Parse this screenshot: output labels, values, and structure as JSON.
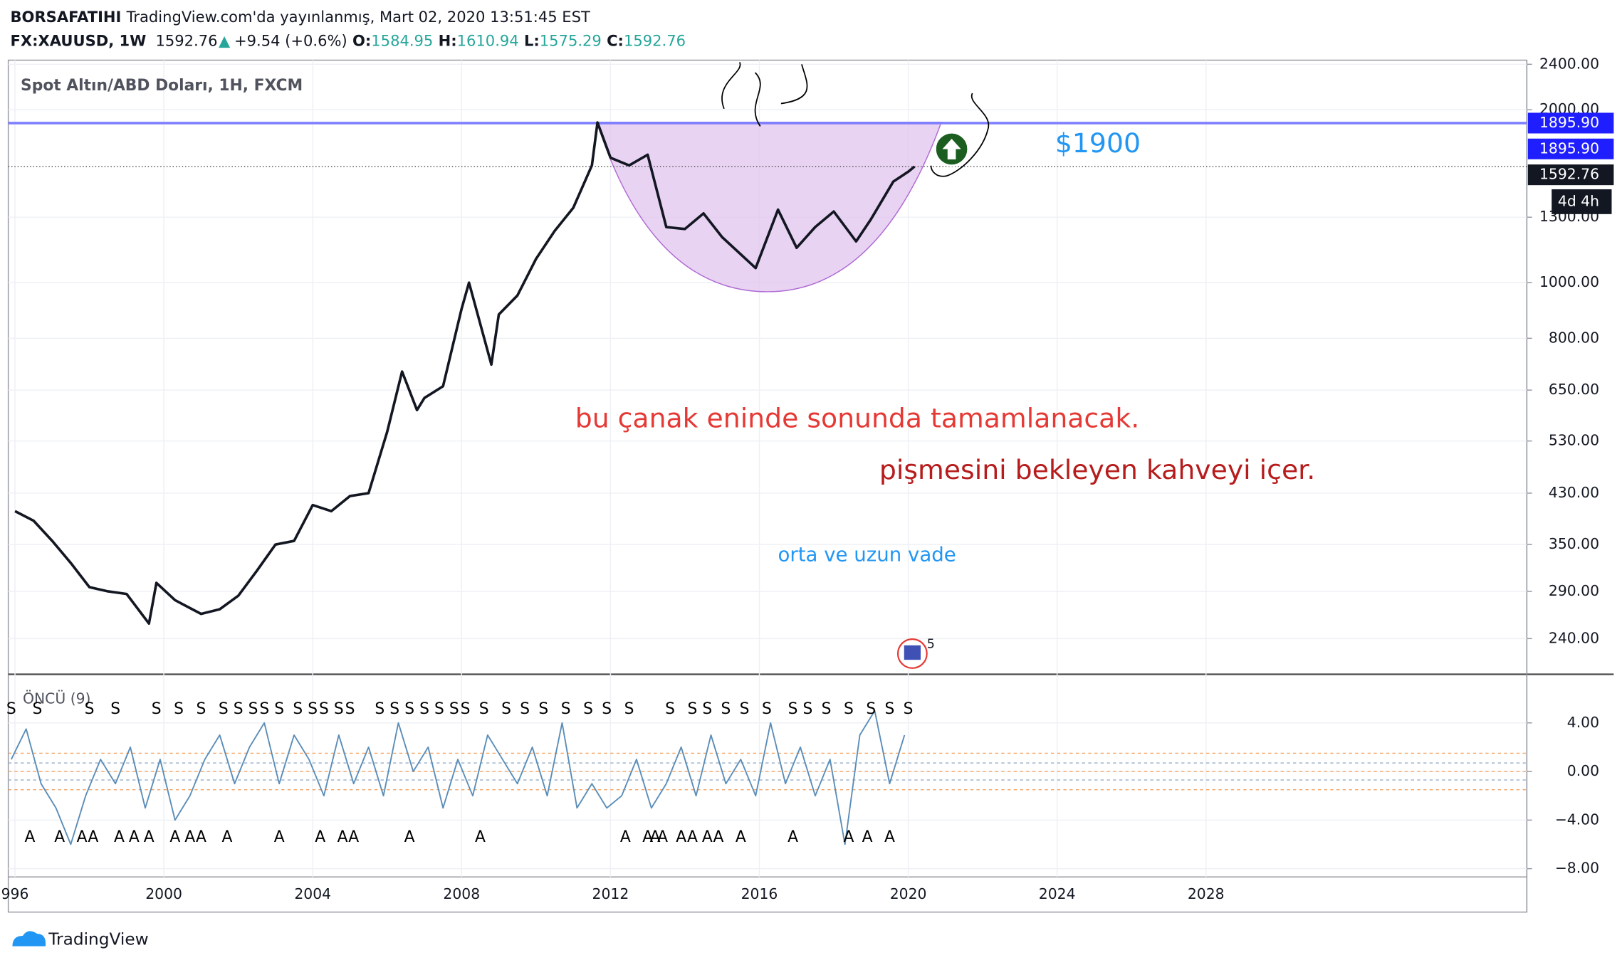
{
  "header": {
    "user": "BORSAFATIHI",
    "published": "TradingView.com'da yayınlanmış, Mart 02, 2020 13:51:45 EST",
    "symbol": "FX:XAUUSD, 1W",
    "last": "1592.76",
    "arrow": "▲",
    "change": "+9.54 (+0.6%)",
    "ohlc": [
      {
        "label": "O:",
        "value": "1584.95"
      },
      {
        "label": "H:",
        "value": "1610.94"
      },
      {
        "label": "L:",
        "value": "1575.29"
      },
      {
        "label": "C:",
        "value": "1592.76"
      }
    ]
  },
  "chart_data": [
    {
      "type": "line",
      "title": "Spot Altın/ABD Doları, 1H, FXCM",
      "log_scale": true,
      "grid": true,
      "color": "#131722",
      "x": [
        1996.0,
        1996.5,
        1997.0,
        1997.5,
        1998.0,
        1998.5,
        1999.0,
        1999.6,
        1999.8,
        2000.3,
        2001.0,
        2001.5,
        2002.0,
        2002.5,
        2003.0,
        2003.5,
        2004.0,
        2004.5,
        2005.0,
        2005.5,
        2006.0,
        2006.4,
        2006.8,
        2007.0,
        2007.5,
        2008.0,
        2008.2,
        2008.8,
        2009.0,
        2009.5,
        2010.0,
        2010.5,
        2011.0,
        2011.5,
        2011.65,
        2012.0,
        2012.5,
        2013.0,
        2013.5,
        2014.0,
        2014.5,
        2015.0,
        2015.9,
        2016.5,
        2017.0,
        2017.5,
        2018.0,
        2018.6,
        2019.0,
        2019.6,
        2020.0,
        2020.17
      ],
      "values": [
        400,
        385,
        355,
        325,
        295,
        290,
        287,
        255,
        300,
        280,
        265,
        270,
        285,
        315,
        350,
        355,
        410,
        400,
        425,
        430,
        550,
        700,
        600,
        630,
        660,
        900,
        1000,
        720,
        880,
        950,
        1100,
        1230,
        1350,
        1600,
        1900,
        1650,
        1600,
        1670,
        1250,
        1240,
        1320,
        1200,
        1060,
        1340,
        1150,
        1250,
        1330,
        1180,
        1290,
        1500,
        1560,
        1592.76
      ],
      "xlim": [
        1995.82,
        2036.62
      ],
      "xticks": [
        {
          "value": 1996,
          "label": "996"
        },
        2000,
        2004,
        2008,
        2012,
        2016,
        2020,
        2024,
        2028
      ],
      "ylim": [
        208,
        2440
      ],
      "yticks": [
        {
          "value": 2400,
          "label": "2400.00"
        },
        {
          "value": 2000,
          "label": "2000.00"
        },
        {
          "value": 1300,
          "label": "1300.00"
        },
        {
          "value": 1000,
          "label": "1000.00"
        },
        {
          "value": 800,
          "label": "800.00"
        },
        {
          "value": 650,
          "label": "650.00"
        },
        {
          "value": 530,
          "label": "530.00"
        },
        {
          "value": 430,
          "label": "430.00"
        },
        {
          "value": 350,
          "label": "350.00"
        },
        {
          "value": 290,
          "label": "290.00"
        },
        {
          "value": 240,
          "label": "240.00"
        }
      ],
      "hline": {
        "value": 1895.9,
        "label": "1895.90",
        "color": "#8080ff"
      },
      "target_label": {
        "value": 1895.9,
        "label": "1895.90"
      },
      "last_line": {
        "value": 1592.76,
        "label": "1592.76"
      },
      "countdown": "4d 4h",
      "annotations": [
        "$1900",
        "bu çanak eninde sonunda tamamlanacak.",
        "pişmesini bekleyen kahveyi içer.",
        "orta ve uzun vade"
      ],
      "badge": "5"
    },
    {
      "type": "line",
      "title": "ÖNCÜ (9)",
      "color": "#5b8db8",
      "x": [
        1995.9,
        1996.3,
        1996.7,
        1997.1,
        1997.5,
        1997.9,
        1998.3,
        1998.7,
        1999.1,
        1999.5,
        1999.9,
        2000.3,
        2000.7,
        2001.1,
        2001.5,
        2001.9,
        2002.3,
        2002.7,
        2003.1,
        2003.5,
        2003.9,
        2004.3,
        2004.7,
        2005.1,
        2005.5,
        2005.9,
        2006.3,
        2006.7,
        2007.1,
        2007.5,
        2007.9,
        2008.3,
        2008.7,
        2009.1,
        2009.5,
        2009.9,
        2010.3,
        2010.7,
        2011.1,
        2011.5,
        2011.9,
        2012.3,
        2012.7,
        2013.1,
        2013.5,
        2013.9,
        2014.3,
        2014.7,
        2015.1,
        2015.5,
        2015.9,
        2016.3,
        2016.7,
        2017.1,
        2017.5,
        2017.9,
        2018.3,
        2018.7,
        2019.1,
        2019.5,
        2019.9
      ],
      "values": [
        1,
        3.5,
        -1,
        -3,
        -6,
        -2,
        1,
        -1,
        2,
        -3,
        1,
        -4,
        -2,
        1,
        3,
        -1,
        2,
        4,
        -1,
        3,
        1,
        -2,
        3,
        -1,
        2,
        -2,
        4,
        0,
        2,
        -3,
        1,
        -2,
        3,
        1,
        -1,
        2,
        -2,
        4,
        -3,
        -1,
        -3,
        -2,
        1,
        -3,
        -1,
        2,
        -2,
        3,
        -1,
        1,
        -2,
        4,
        -1,
        2,
        -2,
        1,
        -6,
        3,
        5,
        -1,
        3
      ],
      "ylim": [
        -8.68,
        8.0
      ],
      "yticks": [
        {
          "value": 4,
          "label": "4.00"
        },
        {
          "value": 0,
          "label": "0.00"
        },
        {
          "value": -4,
          "label": "−4.00"
        },
        {
          "value": -8,
          "label": "−8.00"
        }
      ],
      "levels": [
        1.5,
        0.7,
        0,
        -0.7,
        -1.5
      ],
      "sell_label": "S",
      "sell_x": [
        1995.9,
        1996.6,
        1998.0,
        1998.7,
        1999.8,
        2000.4,
        2001.0,
        2001.6,
        2002.0,
        2002.4,
        2002.7,
        2003.1,
        2003.6,
        2004.0,
        2004.3,
        2004.7,
        2005.0,
        2005.8,
        2006.2,
        2006.6,
        2007.0,
        2007.4,
        2007.8,
        2008.1,
        2008.6,
        2009.2,
        2009.7,
        2010.2,
        2010.8,
        2011.4,
        2011.9,
        2012.5,
        2013.6,
        2014.2,
        2014.6,
        2015.1,
        2015.6,
        2016.2,
        2016.9,
        2017.3,
        2017.8,
        2018.4,
        2019.0,
        2019.5,
        2020.0
      ],
      "buy_label": "A",
      "buy_x": [
        1996.4,
        1997.2,
        1997.8,
        1998.1,
        1998.8,
        1999.2,
        1999.6,
        2000.3,
        2000.7,
        2001.0,
        2001.7,
        2003.1,
        2004.2,
        2004.8,
        2005.1,
        2006.6,
        2008.5,
        2012.4,
        2013.0,
        2013.2,
        2013.4,
        2013.9,
        2014.2,
        2014.6,
        2014.9,
        2015.5,
        2016.9,
        2018.4,
        2018.9,
        2019.5
      ]
    }
  ],
  "footer": {
    "brand": "TradingView"
  }
}
